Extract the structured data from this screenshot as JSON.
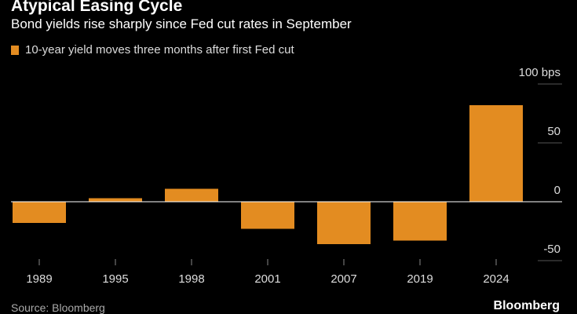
{
  "chart_data": {
    "type": "bar",
    "title": "Atypical Easing Cycle",
    "subtitle": "Bond yields rise sharply since Fed cut rates in September",
    "legend": [
      {
        "name": "10-year yield moves three months after first Fed cut",
        "color": "#E38C21"
      }
    ],
    "categories": [
      "1989",
      "1995",
      "1998",
      "2001",
      "2007",
      "2019",
      "2024"
    ],
    "series": [
      {
        "name": "10-year yield moves three months after first Fed cut",
        "values": [
          -18,
          3,
          11,
          -23,
          -36,
          -33,
          82
        ]
      }
    ],
    "yticks": [
      "100 bps",
      "50",
      "0",
      "-50"
    ],
    "ytick_values": [
      100,
      50,
      0,
      -50
    ],
    "ylim": [
      -56,
      100
    ],
    "grid": true,
    "source": "Source: Bloomberg",
    "brand": "Bloomberg"
  }
}
